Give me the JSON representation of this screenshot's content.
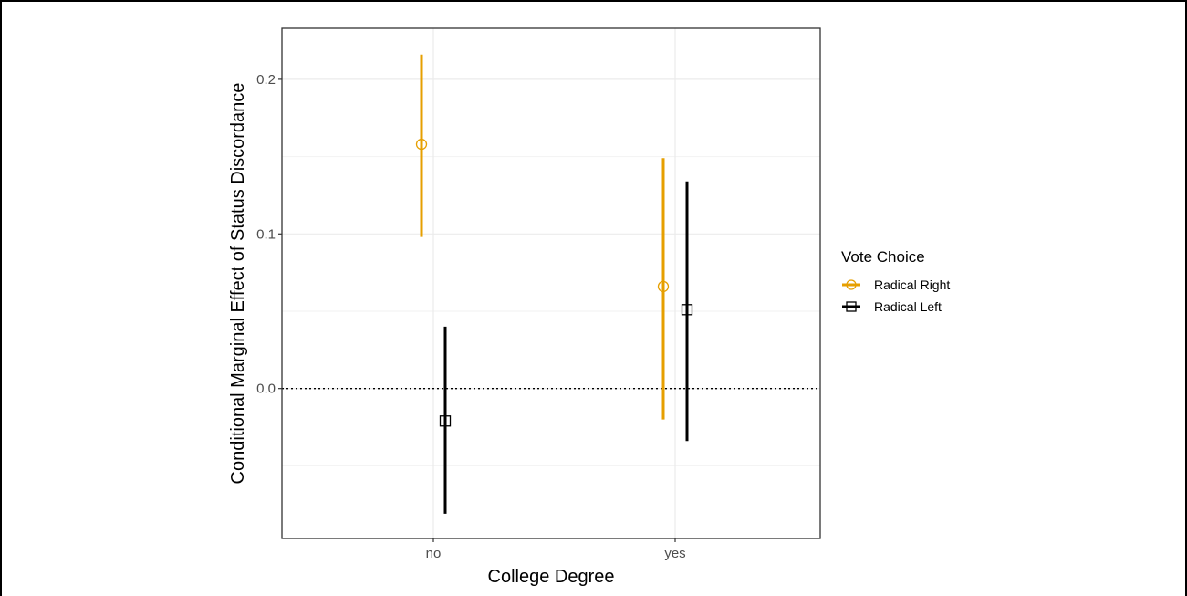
{
  "chart_data": {
    "type": "scatter",
    "subtype": "pointrange",
    "xlabel": "College Degree",
    "ylabel": "Conditional Marginal Effect of Status Discordance",
    "categories": [
      "no",
      "yes"
    ],
    "y_ticks": [
      0.0,
      0.1,
      0.2
    ],
    "y_tick_labels": [
      "0.0",
      "0.1",
      "0.2"
    ],
    "ylim": [
      -0.097,
      0.233
    ],
    "reference_line": {
      "y": 0.0,
      "style": "dotted"
    },
    "grid": true,
    "legend": {
      "title": "Vote Choice",
      "position": "right"
    },
    "series": [
      {
        "name": "Radical Right",
        "color": "#E69F00",
        "marker": "circle-open",
        "points": [
          {
            "category": "no",
            "y": 0.158,
            "lower": 0.098,
            "upper": 0.216
          },
          {
            "category": "yes",
            "y": 0.066,
            "lower": -0.02,
            "upper": 0.149
          }
        ]
      },
      {
        "name": "Radical Left",
        "color": "#000000",
        "marker": "square-open",
        "points": [
          {
            "category": "no",
            "y": -0.021,
            "lower": -0.081,
            "upper": 0.04
          },
          {
            "category": "yes",
            "y": 0.051,
            "lower": -0.034,
            "upper": 0.134
          }
        ]
      }
    ]
  }
}
